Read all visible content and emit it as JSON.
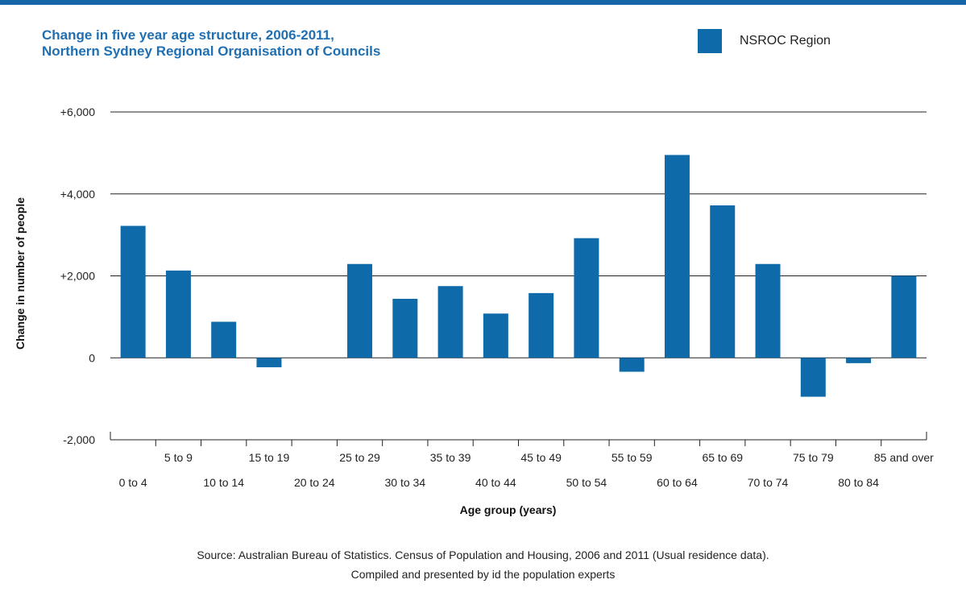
{
  "chart_data": {
    "type": "bar",
    "title_lines": [
      "Change in five year age structure, 2006-2011,",
      "Northern Sydney Regional Organisation of Councils"
    ],
    "xlabel": "Age group (years)",
    "ylabel": "Change in number of people",
    "ylim": [
      -2000,
      6000
    ],
    "yticks": [
      {
        "value": 6000,
        "label": "+6,000"
      },
      {
        "value": 4000,
        "label": "+4,000"
      },
      {
        "value": 2000,
        "label": "+2,000"
      },
      {
        "value": 0,
        "label": "0"
      },
      {
        "value": -2000,
        "label": "-2,000"
      }
    ],
    "categories": [
      "0 to 4",
      "5 to 9",
      "10 to 14",
      "15 to 19",
      "20 to 24",
      "25 to 29",
      "30 to 34",
      "35 to 39",
      "40 to 44",
      "45 to 49",
      "50 to 54",
      "55 to 59",
      "60 to 64",
      "65 to 69",
      "70 to 74",
      "75 to 79",
      "80 to 84",
      "85 and over"
    ],
    "series": [
      {
        "name": "NSROC Region",
        "color": "#0f6aa9",
        "values": [
          3220,
          2130,
          880,
          -230,
          0,
          2290,
          1440,
          1750,
          1080,
          1580,
          2920,
          -340,
          4950,
          3720,
          2290,
          -950,
          -130,
          2000
        ]
      }
    ],
    "gridlines": true,
    "legend_position": "top-right"
  },
  "source_lines": [
    "Source: Australian Bureau of Statistics. Census of Population and Housing, 2006 and 2011 (Usual residence data).",
    "Compiled and presented by id the population experts"
  ]
}
